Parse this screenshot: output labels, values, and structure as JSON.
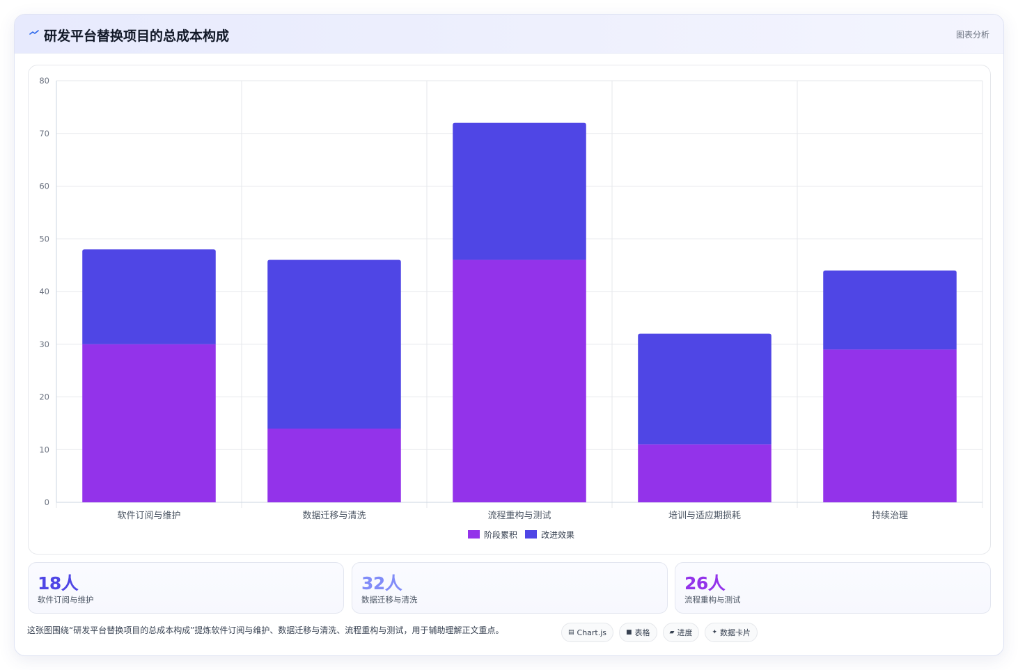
{
  "header": {
    "title": "研发平台替换项目的总成本构成",
    "right_label": "图表分析",
    "icon": "trend-line-icon"
  },
  "chart_data": {
    "type": "bar",
    "stacked": true,
    "categories": [
      "软件订阅与维护",
      "数据迁移与清洗",
      "流程重构与测试",
      "培训与适应期损耗",
      "持续治理"
    ],
    "series": [
      {
        "name": "阶段累积",
        "values": [
          30,
          14,
          46,
          11,
          29
        ],
        "color": "#9333ea"
      },
      {
        "name": "改进效果",
        "values": [
          18,
          32,
          26,
          21,
          15
        ],
        "color": "#4f46e5"
      }
    ],
    "ylim": [
      0,
      80
    ],
    "yticks": [
      0,
      10,
      20,
      30,
      40,
      50,
      60,
      70,
      80
    ],
    "grid": true,
    "legend_position": "bottom"
  },
  "stats": [
    {
      "value": "18人",
      "label": "软件订阅与维护",
      "color": "#4f46e5"
    },
    {
      "value": "32人",
      "label": "数据迁移与清洗",
      "color": "#818cf8"
    },
    {
      "value": "26人",
      "label": "流程重构与测试",
      "color": "#9333ea"
    }
  ],
  "description": "这张图围绕“研发平台替换项目的总成本构成”提炼软件订阅与维护、数据迁移与清洗、流程重构与测试，用于辅助理解正文重点。",
  "chips": [
    {
      "icon": "▤",
      "icon_name": "chart-icon",
      "label": "Chart.js"
    },
    {
      "icon": "■",
      "icon_name": "table-icon",
      "label": "表格"
    },
    {
      "icon": "▰",
      "icon_name": "progress-icon",
      "label": "进度"
    },
    {
      "icon": "✦",
      "icon_name": "sparkle-icon",
      "label": "数据卡片"
    }
  ]
}
